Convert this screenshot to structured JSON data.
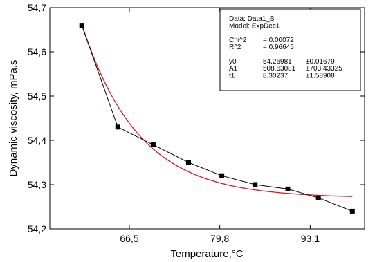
{
  "chart_data": {
    "type": "scatter",
    "xlabel": "Temperature,°C",
    "ylabel": "Dynamic viscosity, mPa.s",
    "xticks": [
      {
        "value": 66.5,
        "label": "66,5"
      },
      {
        "value": 79.8,
        "label": "79,8"
      },
      {
        "value": 93.1,
        "label": "93,1"
      }
    ],
    "yticks": [
      {
        "value": 54.2,
        "label": "54,2"
      },
      {
        "value": 54.3,
        "label": "54,3"
      },
      {
        "value": 54.4,
        "label": "54,4"
      },
      {
        "value": 54.5,
        "label": "54,5"
      },
      {
        "value": 54.6,
        "label": "54,6"
      },
      {
        "value": 54.7,
        "label": "54,7"
      }
    ],
    "xlim": [
      54.8,
      101.1
    ],
    "ylim": [
      54.2,
      54.7
    ],
    "grid": false,
    "series": [
      {
        "style": "line-with-square-markers",
        "color": "#000000",
        "points": [
          {
            "x": 59.5,
            "y": 54.66
          },
          {
            "x": 64.8,
            "y": 54.43
          },
          {
            "x": 70.0,
            "y": 54.39
          },
          {
            "x": 75.2,
            "y": 54.35
          },
          {
            "x": 80.1,
            "y": 54.32
          },
          {
            "x": 85.0,
            "y": 54.3
          },
          {
            "x": 89.8,
            "y": 54.29
          },
          {
            "x": 94.3,
            "y": 54.27
          },
          {
            "x": 99.3,
            "y": 54.24
          }
        ]
      },
      {
        "style": "fit-curve",
        "color": "#e0141e",
        "model": {
          "y0": 54.26981,
          "A1": 508.63081,
          "t1": 8.30237
        },
        "x_range": [
          59.5,
          99.3
        ]
      }
    ],
    "annotation": {
      "lines": [
        [
          "Data: Data1_B"
        ],
        [
          "Model: ExpDec1"
        ],
        [
          ""
        ],
        [
          "Chi^2",
          "= 0.00072"
        ],
        [
          "R^2",
          "= 0.96645"
        ],
        [
          ""
        ],
        [
          "y0",
          "54.26981",
          "±0.01679"
        ],
        [
          "A1",
          "508.63081",
          "±703.43325"
        ],
        [
          "t1",
          "8.30237",
          "±1.58908"
        ]
      ]
    }
  }
}
